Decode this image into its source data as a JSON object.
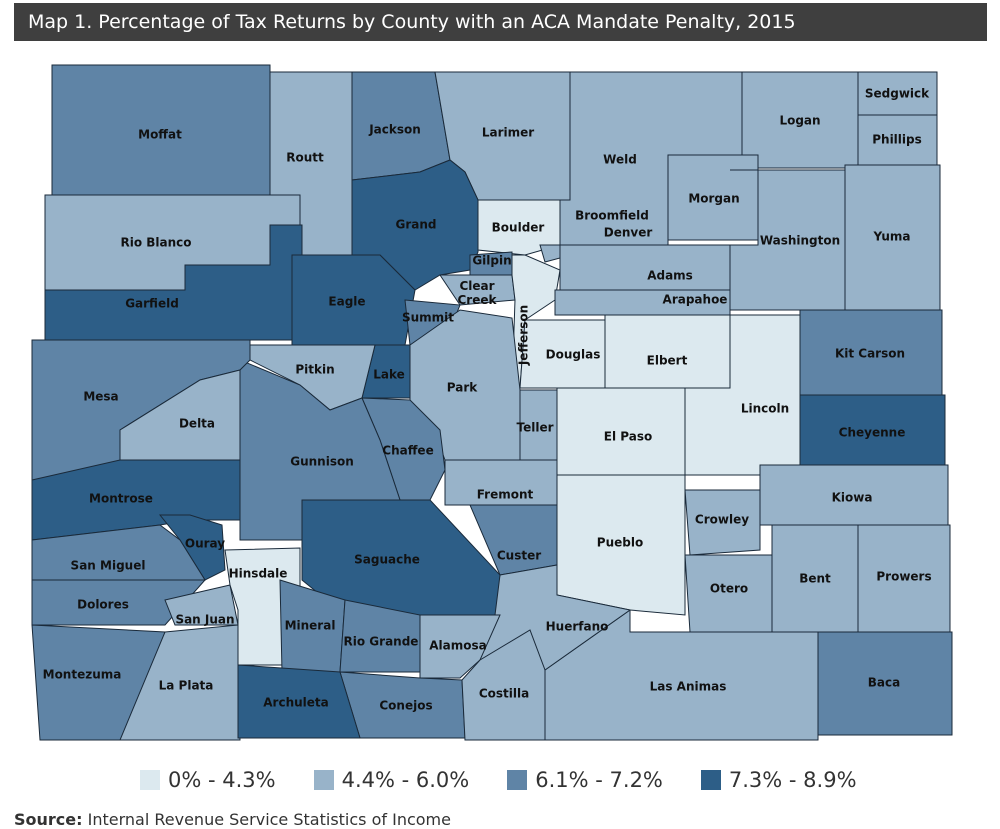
{
  "title": "Map 1. Percentage of Tax Returns by County with an ACA Mandate Penalty, 2015",
  "legend": [
    {
      "label": "0% - 4.3%",
      "color": "#dce9ef"
    },
    {
      "label": "4.4% - 6.0%",
      "color": "#98b3c9"
    },
    {
      "label": "6.1% - 7.2%",
      "color": "#5f84a6"
    },
    {
      "label": "7.3% - 8.9%",
      "color": "#2d5e87"
    }
  ],
  "counties": [
    {
      "name": "Moffat",
      "class": 2
    },
    {
      "name": "Routt",
      "class": 1
    },
    {
      "name": "Jackson",
      "class": 2
    },
    {
      "name": "Larimer",
      "class": 1
    },
    {
      "name": "Weld",
      "class": 1
    },
    {
      "name": "Logan",
      "class": 1
    },
    {
      "name": "Sedgwick",
      "class": 1
    },
    {
      "name": "Phillips",
      "class": 1
    },
    {
      "name": "Morgan",
      "class": 1
    },
    {
      "name": "Washington",
      "class": 1
    },
    {
      "name": "Yuma",
      "class": 1
    },
    {
      "name": "Rio Blanco",
      "class": 1
    },
    {
      "name": "Garfield",
      "class": 3
    },
    {
      "name": "Grand",
      "class": 3
    },
    {
      "name": "Boulder",
      "class": 0
    },
    {
      "name": "Broomfield",
      "class": 1
    },
    {
      "name": "Gilpin",
      "class": 2
    },
    {
      "name": "Clear Creek",
      "class": 1
    },
    {
      "name": "Eagle",
      "class": 3
    },
    {
      "name": "Summit",
      "class": 2
    },
    {
      "name": "Jefferson",
      "class": 0
    },
    {
      "name": "Denver",
      "class": 0
    },
    {
      "name": "Adams",
      "class": 1
    },
    {
      "name": "Arapahoe",
      "class": 1
    },
    {
      "name": "Douglas",
      "class": 0
    },
    {
      "name": "Elbert",
      "class": 0
    },
    {
      "name": "Lincoln",
      "class": 0
    },
    {
      "name": "Kit Carson",
      "class": 2
    },
    {
      "name": "Cheyenne",
      "class": 3
    },
    {
      "name": "Kiowa",
      "class": 1
    },
    {
      "name": "Crowley",
      "class": 1
    },
    {
      "name": "Otero",
      "class": 1
    },
    {
      "name": "Bent",
      "class": 1
    },
    {
      "name": "Prowers",
      "class": 1
    },
    {
      "name": "Baca",
      "class": 2
    },
    {
      "name": "Las Animas",
      "class": 1
    },
    {
      "name": "Pueblo",
      "class": 0
    },
    {
      "name": "El Paso",
      "class": 0
    },
    {
      "name": "Teller",
      "class": 1
    },
    {
      "name": "Park",
      "class": 1
    },
    {
      "name": "Lake",
      "class": 3
    },
    {
      "name": "Pitkin",
      "class": 1
    },
    {
      "name": "Chaffee",
      "class": 2
    },
    {
      "name": "Fremont",
      "class": 1
    },
    {
      "name": "Custer",
      "class": 2
    },
    {
      "name": "Huerfano",
      "class": 1
    },
    {
      "name": "Saguache",
      "class": 3
    },
    {
      "name": "Gunnison",
      "class": 2
    },
    {
      "name": "Mesa",
      "class": 2
    },
    {
      "name": "Delta",
      "class": 1
    },
    {
      "name": "Montrose",
      "class": 3
    },
    {
      "name": "Ouray",
      "class": 3
    },
    {
      "name": "San Miguel",
      "class": 2
    },
    {
      "name": "Dolores",
      "class": 2
    },
    {
      "name": "San Juan",
      "class": 1
    },
    {
      "name": "Hinsdale",
      "class": 0
    },
    {
      "name": "Montezuma",
      "class": 2
    },
    {
      "name": "La Plata",
      "class": 1
    },
    {
      "name": "Mineral",
      "class": 2
    },
    {
      "name": "Rio Grande",
      "class": 2
    },
    {
      "name": "Alamosa",
      "class": 1
    },
    {
      "name": "Conejos",
      "class": 2
    },
    {
      "name": "Archuleta",
      "class": 3
    },
    {
      "name": "Costilla",
      "class": 1
    }
  ],
  "source": {
    "label": "Source:",
    "text": "Internal Revenue Service Statistics of Income"
  }
}
